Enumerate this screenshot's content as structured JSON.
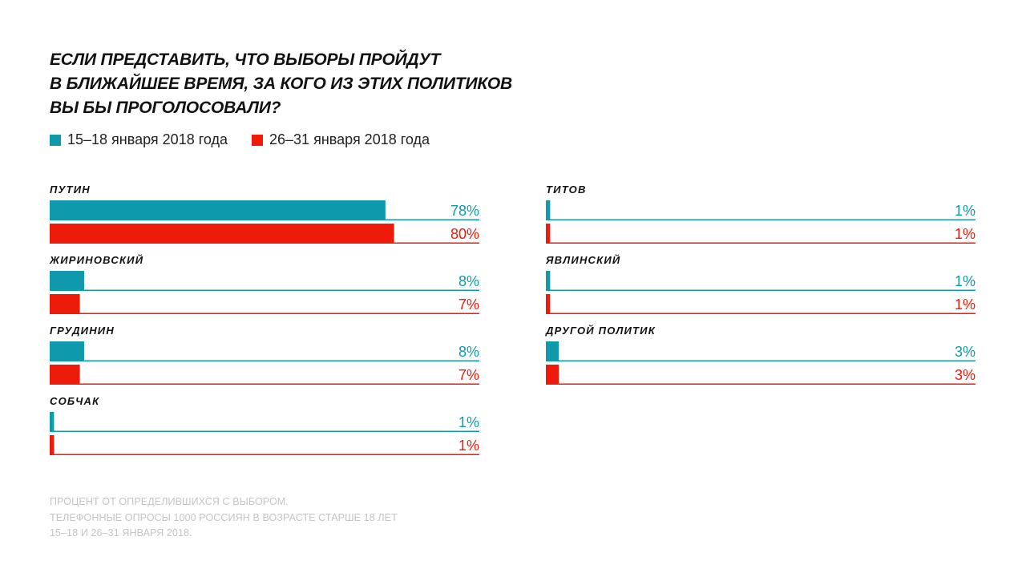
{
  "title": {
    "lines": [
      "ЕСЛИ ПРЕДСТАВИТЬ, ЧТО ВЫБОРЫ ПРОЙДУТ",
      "В БЛИЖАЙШЕЕ ВРЕМЯ, ЗА КОГО ИЗ ЭТИХ ПОЛИТИКОВ",
      "ВЫ БЫ ПРОГОЛОСОВАЛИ?"
    ]
  },
  "legend": [
    {
      "label": "15–18 января 2018 года",
      "color": "#0f99ac"
    },
    {
      "label": "26–31 января 2018 года",
      "color": "#ee1a0a"
    }
  ],
  "chart_data": {
    "type": "bar",
    "orientation": "horizontal",
    "title": "ЕСЛИ ПРЕДСТАВИТЬ, ЧТО ВЫБОРЫ ПРОЙДУТ В БЛИЖАЙШЕЕ ВРЕМЯ, ЗА КОГО ИЗ ЭТИХ ПОЛИТИКОВ ВЫ БЫ ПРОГОЛОСОВАЛИ?",
    "categories": [
      "ПУТИН",
      "ЖИРИНОВСКИЙ",
      "ГРУДИНИН",
      "СОБЧАК",
      "ТИТОВ",
      "ЯВЛИНСКИЙ",
      "ДРУГОЙ ПОЛИТИК"
    ],
    "series": [
      {
        "name": "15–18 января 2018 года",
        "color": "#0f99ac",
        "values": [
          78,
          8,
          8,
          1,
          1,
          1,
          3
        ]
      },
      {
        "name": "26–31 января 2018 года",
        "color": "#ee1a0a",
        "values": [
          80,
          7,
          7,
          1,
          1,
          1,
          3
        ]
      }
    ],
    "value_labels": [
      [
        "78%",
        "80%"
      ],
      [
        "8%",
        "7%"
      ],
      [
        "8%",
        "7%"
      ],
      [
        "1%",
        "1%"
      ],
      [
        "1%",
        "1%"
      ],
      [
        "1%",
        "1%"
      ],
      [
        "3%",
        "3%"
      ]
    ],
    "xlim": [
      0,
      100
    ],
    "unit": "%",
    "layout": "two columns: first four categories left, last three right"
  },
  "footnote": {
    "lines": [
      "ПРОЦЕНТ ОТ ОПРЕДЕЛИВШИХСЯ С ВЫБОРОМ.",
      "ТЕЛЕФОННЫЕ ОПРОСЫ 1000 РОССИЯН В ВОЗРАСТЕ СТАРШЕ 18 ЛЕТ",
      "15–18 И 26–31 ЯНВАРЯ 2018."
    ]
  }
}
